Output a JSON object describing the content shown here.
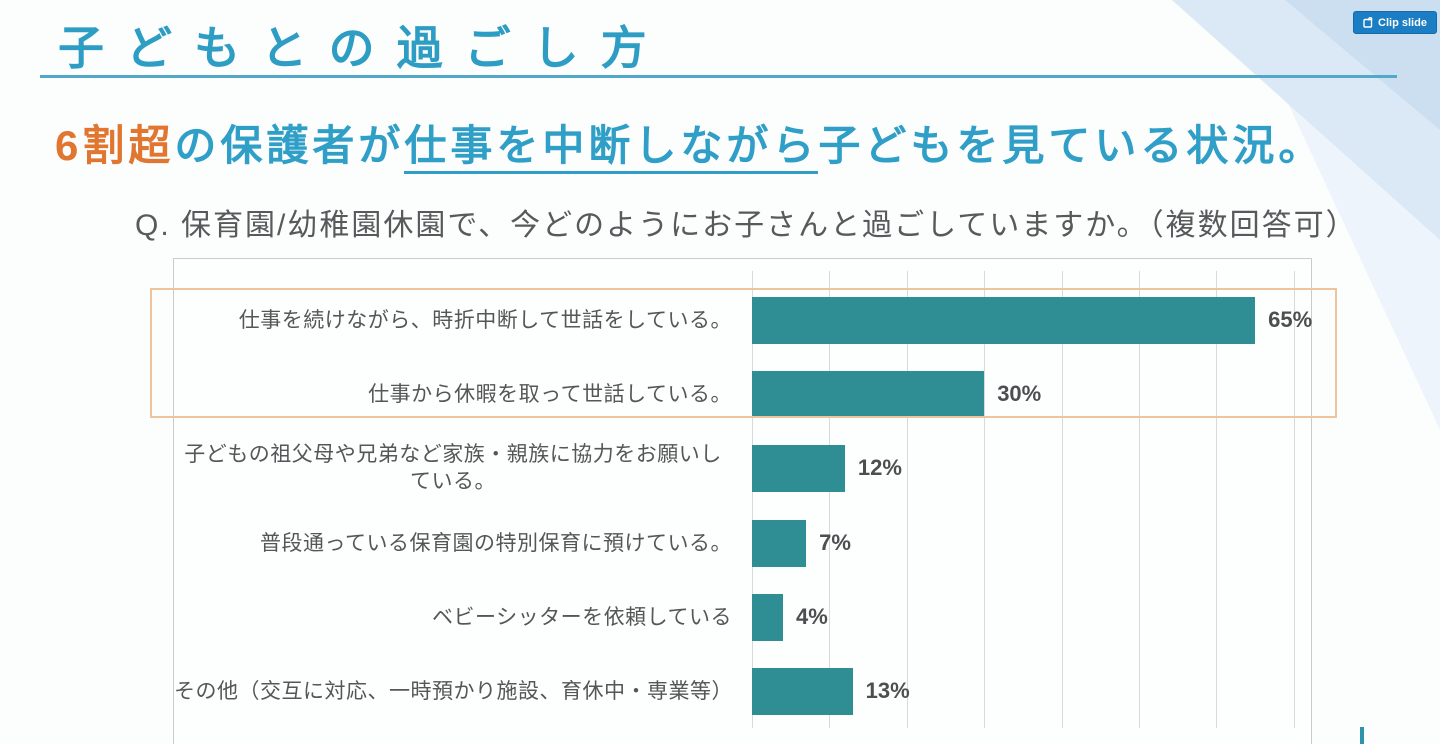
{
  "page": {
    "clip_button": {
      "label": "Clip slide"
    },
    "title": "子どもとの過ごし方",
    "subtitle": {
      "segments": [
        {
          "text": "6割超"
        },
        {
          "text": "の保護者が"
        },
        {
          "text": "仕事を中断しながら"
        },
        {
          "text": "子どもを見ている状況。"
        }
      ]
    },
    "question": "Q. 保育園/幼稚園休園で、今どのようにお子さんと過ごしていますか。（複数回答可）"
  },
  "colors": {
    "title_teal": "#2e9dc4",
    "accent_orange": "#e0762f",
    "bar_teal": "#2f8d94",
    "highlight_border": "#edc49c",
    "clip_button_blue": "#1b7dc3",
    "gridline_gray": "#d9d9d9"
  },
  "chart_data": {
    "type": "bar",
    "orientation": "horizontal",
    "title": "",
    "xlabel": "",
    "ylabel": "",
    "xlim": [
      0,
      70
    ],
    "gridline_step": 10,
    "grid": true,
    "unit": "%",
    "categories": [
      "仕事を続けながら、時折中断して世話をしている。",
      "仕事から休暇を取って世話している。",
      "子どもの祖父母や兄弟など家族・親族に協力をお願いしている。",
      "普段通っている保育園の特別保育に預けている。",
      "ベビーシッターを依頼している",
      "その他（交互に対応、一時預かり施設、育休中・専業等）"
    ],
    "values": [
      65,
      30,
      12,
      7,
      4,
      13
    ],
    "value_labels": [
      "65%",
      "30%",
      "12%",
      "7%",
      "4%",
      "13%"
    ],
    "highlighted_rows": [
      0,
      1
    ]
  }
}
